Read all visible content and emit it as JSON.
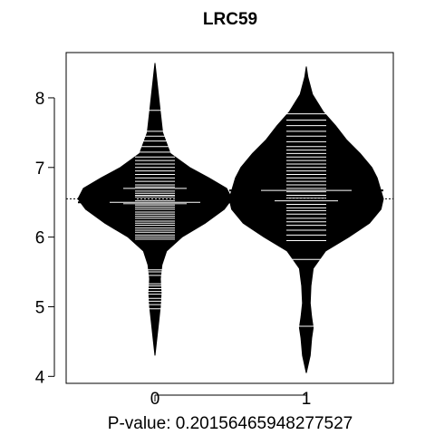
{
  "chart_data": {
    "type": "beanplot",
    "title": "LRC59",
    "xlabel": "P-value: 0.20156465948277527",
    "ylabel": "",
    "ylim": [
      3.9,
      8.65
    ],
    "y_ticks": [
      4,
      5,
      6,
      7,
      8
    ],
    "categories": [
      "0",
      "1"
    ],
    "overall_mean": 6.55,
    "series": [
      {
        "category": "0",
        "mean": 6.5,
        "density": [
          [
            4.3,
            0.0
          ],
          [
            4.5,
            0.02
          ],
          [
            4.8,
            0.05
          ],
          [
            5.0,
            0.07
          ],
          [
            5.2,
            0.08
          ],
          [
            5.4,
            0.07
          ],
          [
            5.6,
            0.09
          ],
          [
            5.8,
            0.15
          ],
          [
            6.0,
            0.35
          ],
          [
            6.2,
            0.65
          ],
          [
            6.4,
            0.9
          ],
          [
            6.55,
            1.0
          ],
          [
            6.7,
            0.93
          ],
          [
            6.85,
            0.7
          ],
          [
            7.0,
            0.45
          ],
          [
            7.2,
            0.2
          ],
          [
            7.5,
            0.1
          ],
          [
            7.8,
            0.07
          ],
          [
            8.1,
            0.04
          ],
          [
            8.3,
            0.02
          ],
          [
            8.5,
            0.0
          ]
        ],
        "observations": [
          4.97,
          5.03,
          5.08,
          5.12,
          5.18,
          5.22,
          5.26,
          5.3,
          5.33,
          5.45,
          5.5,
          5.53,
          5.97,
          6.0,
          6.03,
          6.07,
          6.1,
          6.13,
          6.17,
          6.2,
          6.23,
          6.27,
          6.3,
          6.33,
          6.36,
          6.4,
          6.43,
          6.46,
          6.48,
          6.52,
          6.55,
          6.58,
          6.6,
          6.63,
          6.66,
          6.7,
          6.72,
          6.75,
          6.8,
          6.85,
          6.9,
          6.95,
          7.0,
          7.05,
          7.1,
          7.15,
          7.22,
          7.3,
          7.38,
          7.45,
          7.52,
          7.82
        ],
        "long_lines": [
          4.97,
          5.3,
          5.53,
          6.48,
          6.7,
          7.82
        ]
      },
      {
        "category": "1",
        "mean": 6.67,
        "density": [
          [
            4.05,
            0.0
          ],
          [
            4.3,
            0.05
          ],
          [
            4.55,
            0.07
          ],
          [
            4.7,
            0.09
          ],
          [
            4.85,
            0.07
          ],
          [
            5.05,
            0.05
          ],
          [
            5.3,
            0.06
          ],
          [
            5.55,
            0.09
          ],
          [
            5.8,
            0.25
          ],
          [
            6.0,
            0.55
          ],
          [
            6.2,
            0.82
          ],
          [
            6.4,
            0.97
          ],
          [
            6.55,
            1.0
          ],
          [
            6.7,
            0.96
          ],
          [
            6.85,
            0.92
          ],
          [
            7.0,
            0.85
          ],
          [
            7.2,
            0.7
          ],
          [
            7.4,
            0.52
          ],
          [
            7.6,
            0.38
          ],
          [
            7.8,
            0.22
          ],
          [
            8.05,
            0.08
          ],
          [
            8.3,
            0.02
          ],
          [
            8.45,
            0.0
          ]
        ],
        "observations": [
          4.72,
          5.68,
          5.95,
          6.03,
          6.1,
          6.17,
          6.22,
          6.27,
          6.33,
          6.38,
          6.42,
          6.47,
          6.52,
          6.56,
          6.6,
          6.65,
          6.7,
          6.75,
          6.8,
          6.85,
          6.9,
          6.95,
          7.0,
          7.05,
          7.1,
          7.15,
          7.2,
          7.25,
          7.3,
          7.37,
          7.45,
          7.52,
          7.6,
          7.68,
          7.77
        ],
        "long_lines": [
          4.72,
          5.68,
          6.52,
          7.77
        ]
      }
    ]
  }
}
